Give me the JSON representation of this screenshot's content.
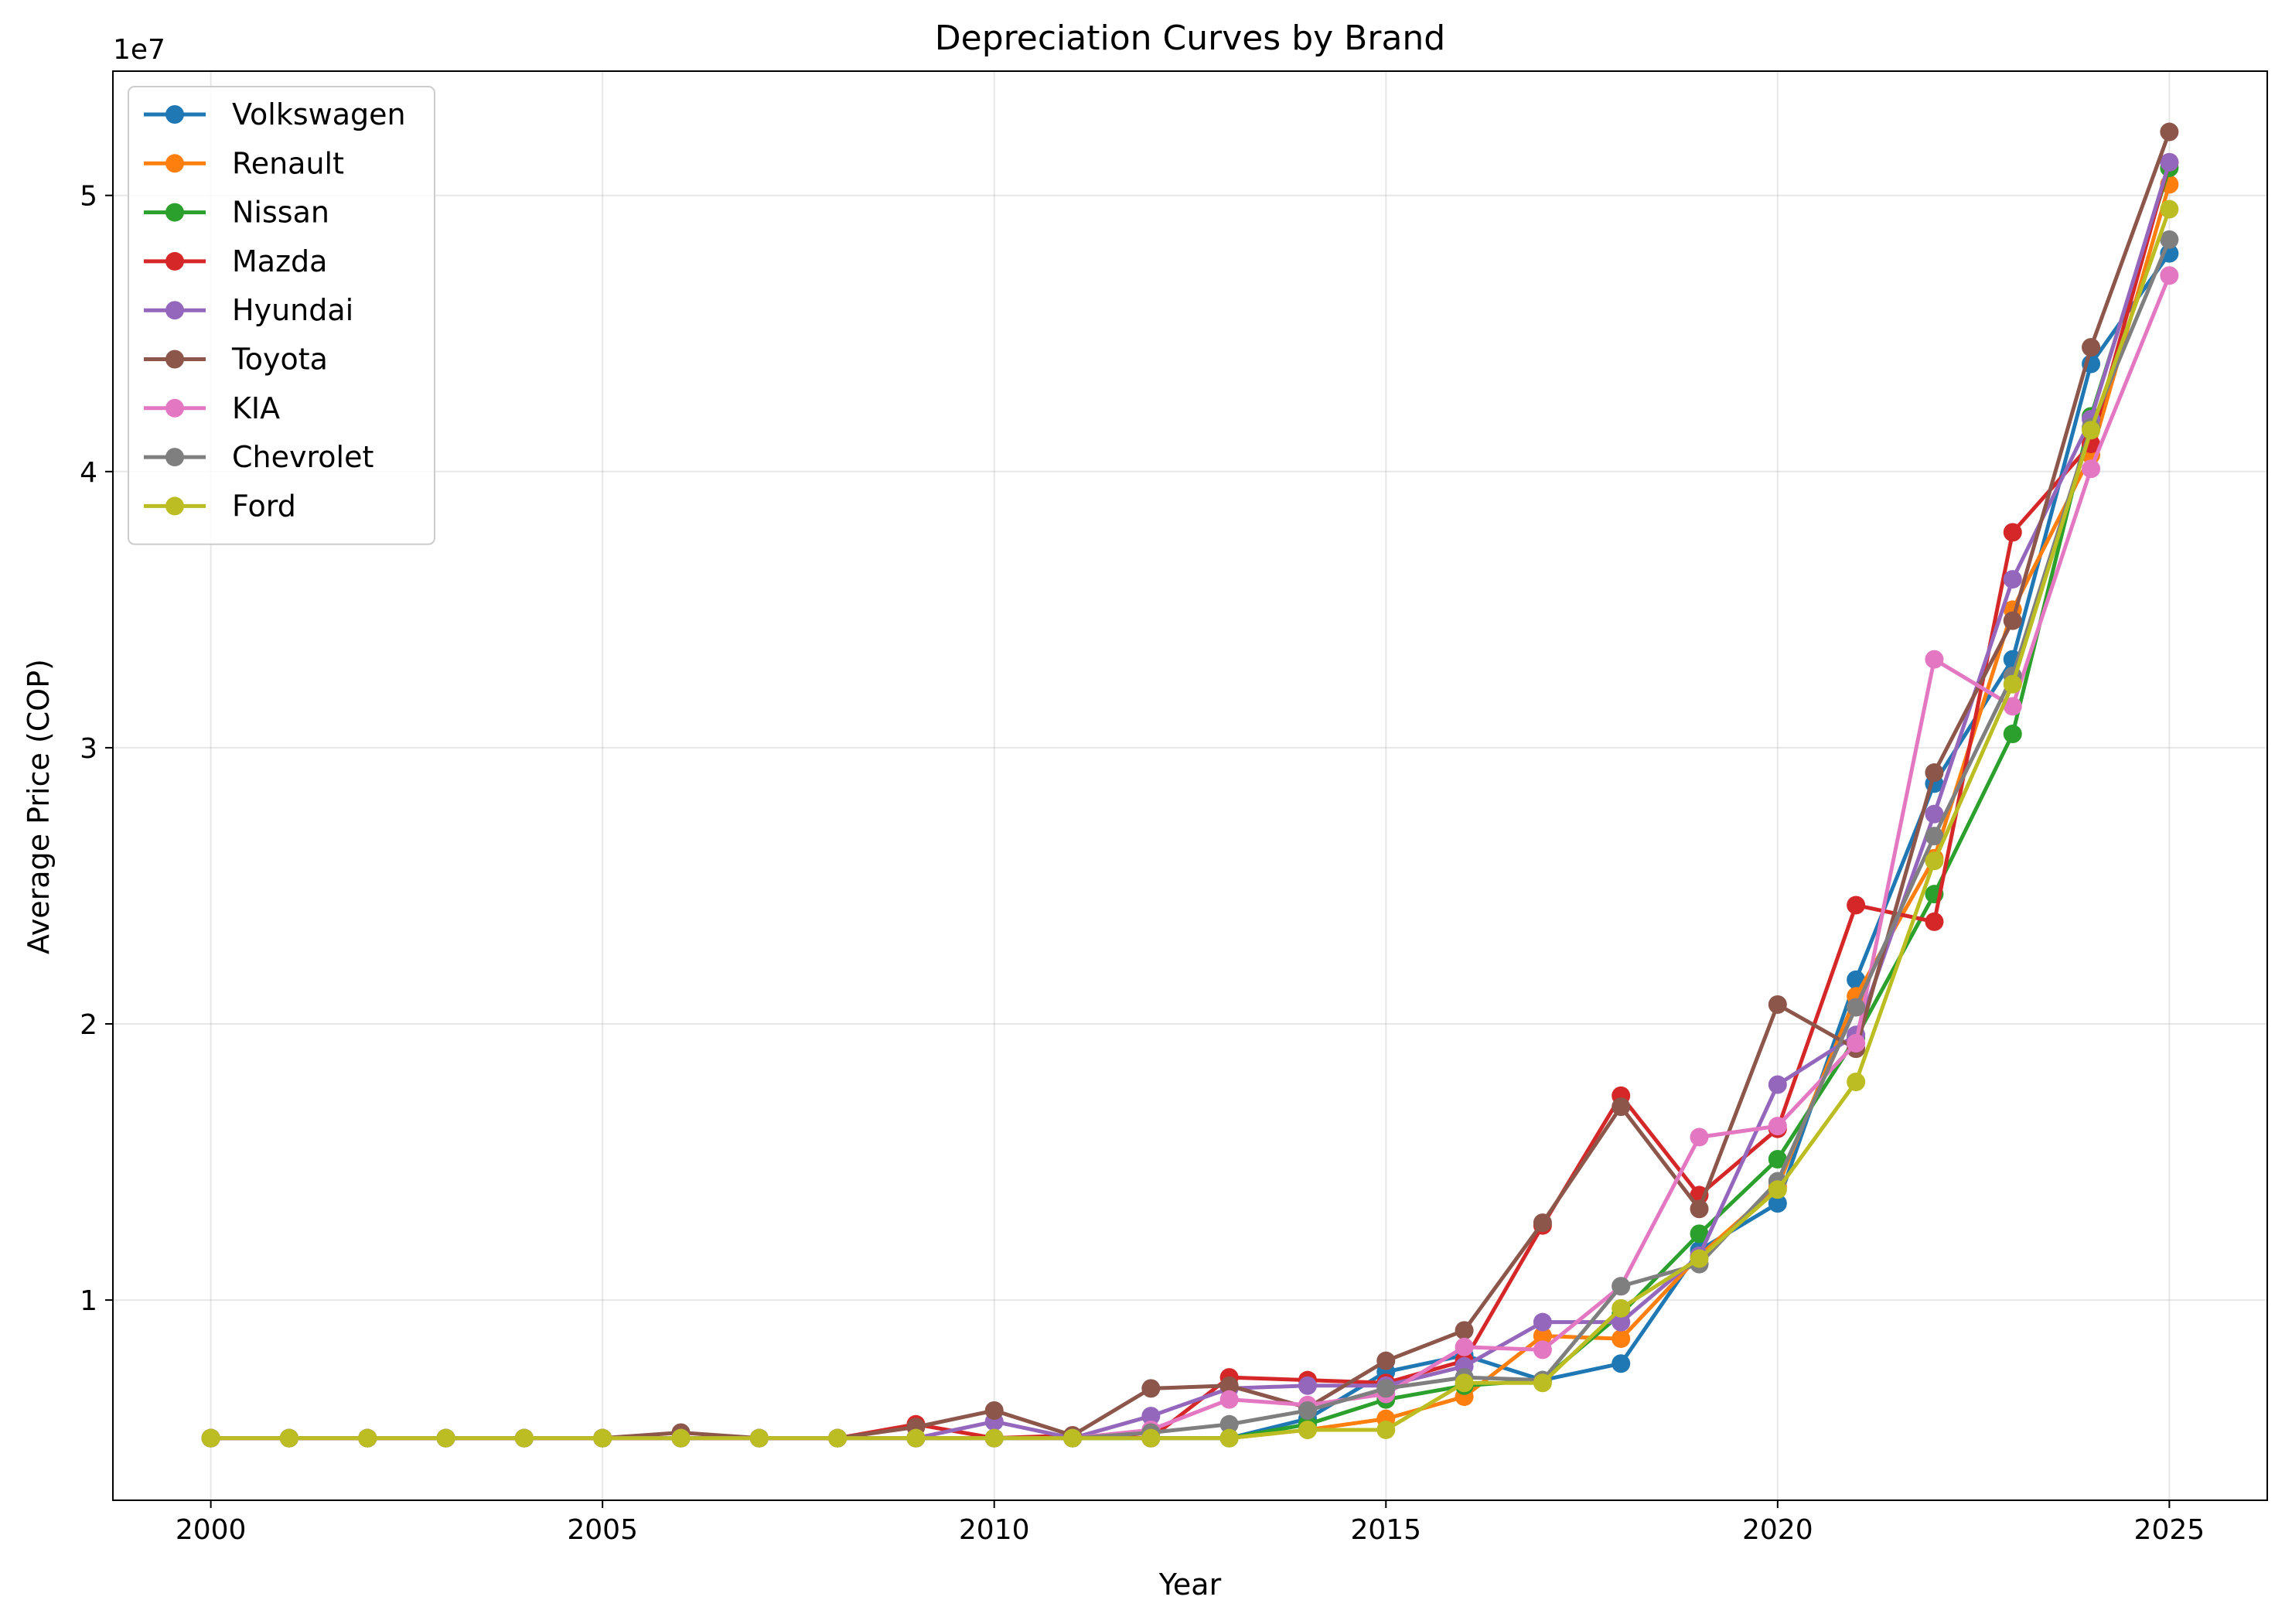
{
  "chart_data": {
    "type": "line",
    "title": "Depreciation Curves by Brand",
    "xlabel": "Year",
    "ylabel": "Average Price (COP)",
    "y_offset_label": "1e7",
    "y_scale": 10000000,
    "xlim": [
      1998.75,
      2026.25
    ],
    "ylim": [
      2750000,
      54500000
    ],
    "x_ticks": [
      2000,
      2005,
      2010,
      2015,
      2020,
      2025
    ],
    "y_ticks": [
      1,
      2,
      3,
      4,
      5
    ],
    "grid": true,
    "legend_position": "top-left",
    "x": [
      2000,
      2001,
      2002,
      2003,
      2004,
      2005,
      2006,
      2007,
      2008,
      2009,
      2010,
      2011,
      2012,
      2013,
      2014,
      2015,
      2016,
      2017,
      2018,
      2019,
      2020,
      2021,
      2022,
      2023,
      2024,
      2025
    ],
    "series": [
      {
        "name": "Volkswagen",
        "color": "#1f77b4",
        "values": [
          5000000,
          5000000,
          5000000,
          5000000,
          5000000,
          5000000,
          5000000,
          5000000,
          5000000,
          5000000,
          5000000,
          5000000,
          5000000,
          5000000,
          5700000,
          7400000,
          8000000,
          7100000,
          7700000,
          11800000,
          13500000,
          21600000,
          28700000,
          33200000,
          43900000,
          47900000
        ]
      },
      {
        "name": "Renault",
        "color": "#ff7f0e",
        "values": [
          5000000,
          5000000,
          5000000,
          5000000,
          5000000,
          5000000,
          5000000,
          5000000,
          5000000,
          5000000,
          5000000,
          5000000,
          5000000,
          5000000,
          5300000,
          5700000,
          6500000,
          8700000,
          8600000,
          11600000,
          14100000,
          21000000,
          26000000,
          35000000,
          40600000,
          50400000
        ]
      },
      {
        "name": "Nissan",
        "color": "#2ca02c",
        "values": [
          5000000,
          5000000,
          5000000,
          5000000,
          5000000,
          5000000,
          5000000,
          5000000,
          5000000,
          5000000,
          5000000,
          5000000,
          5000000,
          5000000,
          5500000,
          6400000,
          6900000,
          7100000,
          9500000,
          12400000,
          15100000,
          19500000,
          24700000,
          30500000,
          42000000,
          51000000
        ]
      },
      {
        "name": "Mazda",
        "color": "#d62728",
        "values": [
          5000000,
          5000000,
          5000000,
          5000000,
          5000000,
          5000000,
          5000000,
          5000000,
          5000000,
          5500000,
          5000000,
          5100000,
          5000000,
          7200000,
          7100000,
          7000000,
          7800000,
          12700000,
          17400000,
          13800000,
          16200000,
          24300000,
          23700000,
          37800000,
          41000000,
          51200000
        ]
      },
      {
        "name": "Hyundai",
        "color": "#9467bd",
        "values": [
          5000000,
          5000000,
          5000000,
          5000000,
          5000000,
          5000000,
          5000000,
          5000000,
          5000000,
          5000000,
          5600000,
          5000000,
          5800000,
          6800000,
          6900000,
          6900000,
          7600000,
          9200000,
          9200000,
          11600000,
          17800000,
          19600000,
          27600000,
          36100000,
          41900000,
          51200000
        ]
      },
      {
        "name": "Toyota",
        "color": "#8c564b",
        "values": [
          5000000,
          5000000,
          5000000,
          5000000,
          5000000,
          5000000,
          5200000,
          5000000,
          5000000,
          5400000,
          6000000,
          5100000,
          6800000,
          6900000,
          6100000,
          7800000,
          8900000,
          12800000,
          17000000,
          13300000,
          20700000,
          19100000,
          29100000,
          34600000,
          44500000,
          52300000
        ]
      },
      {
        "name": "KIA",
        "color": "#e377c2",
        "values": [
          5000000,
          5000000,
          5000000,
          5000000,
          5000000,
          5000000,
          5000000,
          5000000,
          5000000,
          5000000,
          5000000,
          5000000,
          5300000,
          6400000,
          6200000,
          6600000,
          8300000,
          8200000,
          10500000,
          15900000,
          16300000,
          19300000,
          33200000,
          31500000,
          40100000,
          47100000
        ]
      },
      {
        "name": "Chevrolet",
        "color": "#7f7f7f",
        "values": [
          5000000,
          5000000,
          5000000,
          5000000,
          5000000,
          5000000,
          5000000,
          5000000,
          5000000,
          5000000,
          5000000,
          5000000,
          5200000,
          5500000,
          6000000,
          6800000,
          7200000,
          7100000,
          10500000,
          11300000,
          14300000,
          20600000,
          26800000,
          32600000,
          41600000,
          48400000
        ]
      },
      {
        "name": "Ford",
        "color": "#bcbd22",
        "values": [
          5000000,
          5000000,
          5000000,
          5000000,
          5000000,
          5000000,
          5000000,
          5000000,
          5000000,
          5000000,
          5000000,
          5000000,
          5000000,
          5000000,
          5300000,
          5300000,
          7000000,
          7000000,
          9700000,
          11500000,
          14000000,
          17900000,
          25900000,
          32300000,
          41500000,
          49500000
        ]
      }
    ]
  }
}
